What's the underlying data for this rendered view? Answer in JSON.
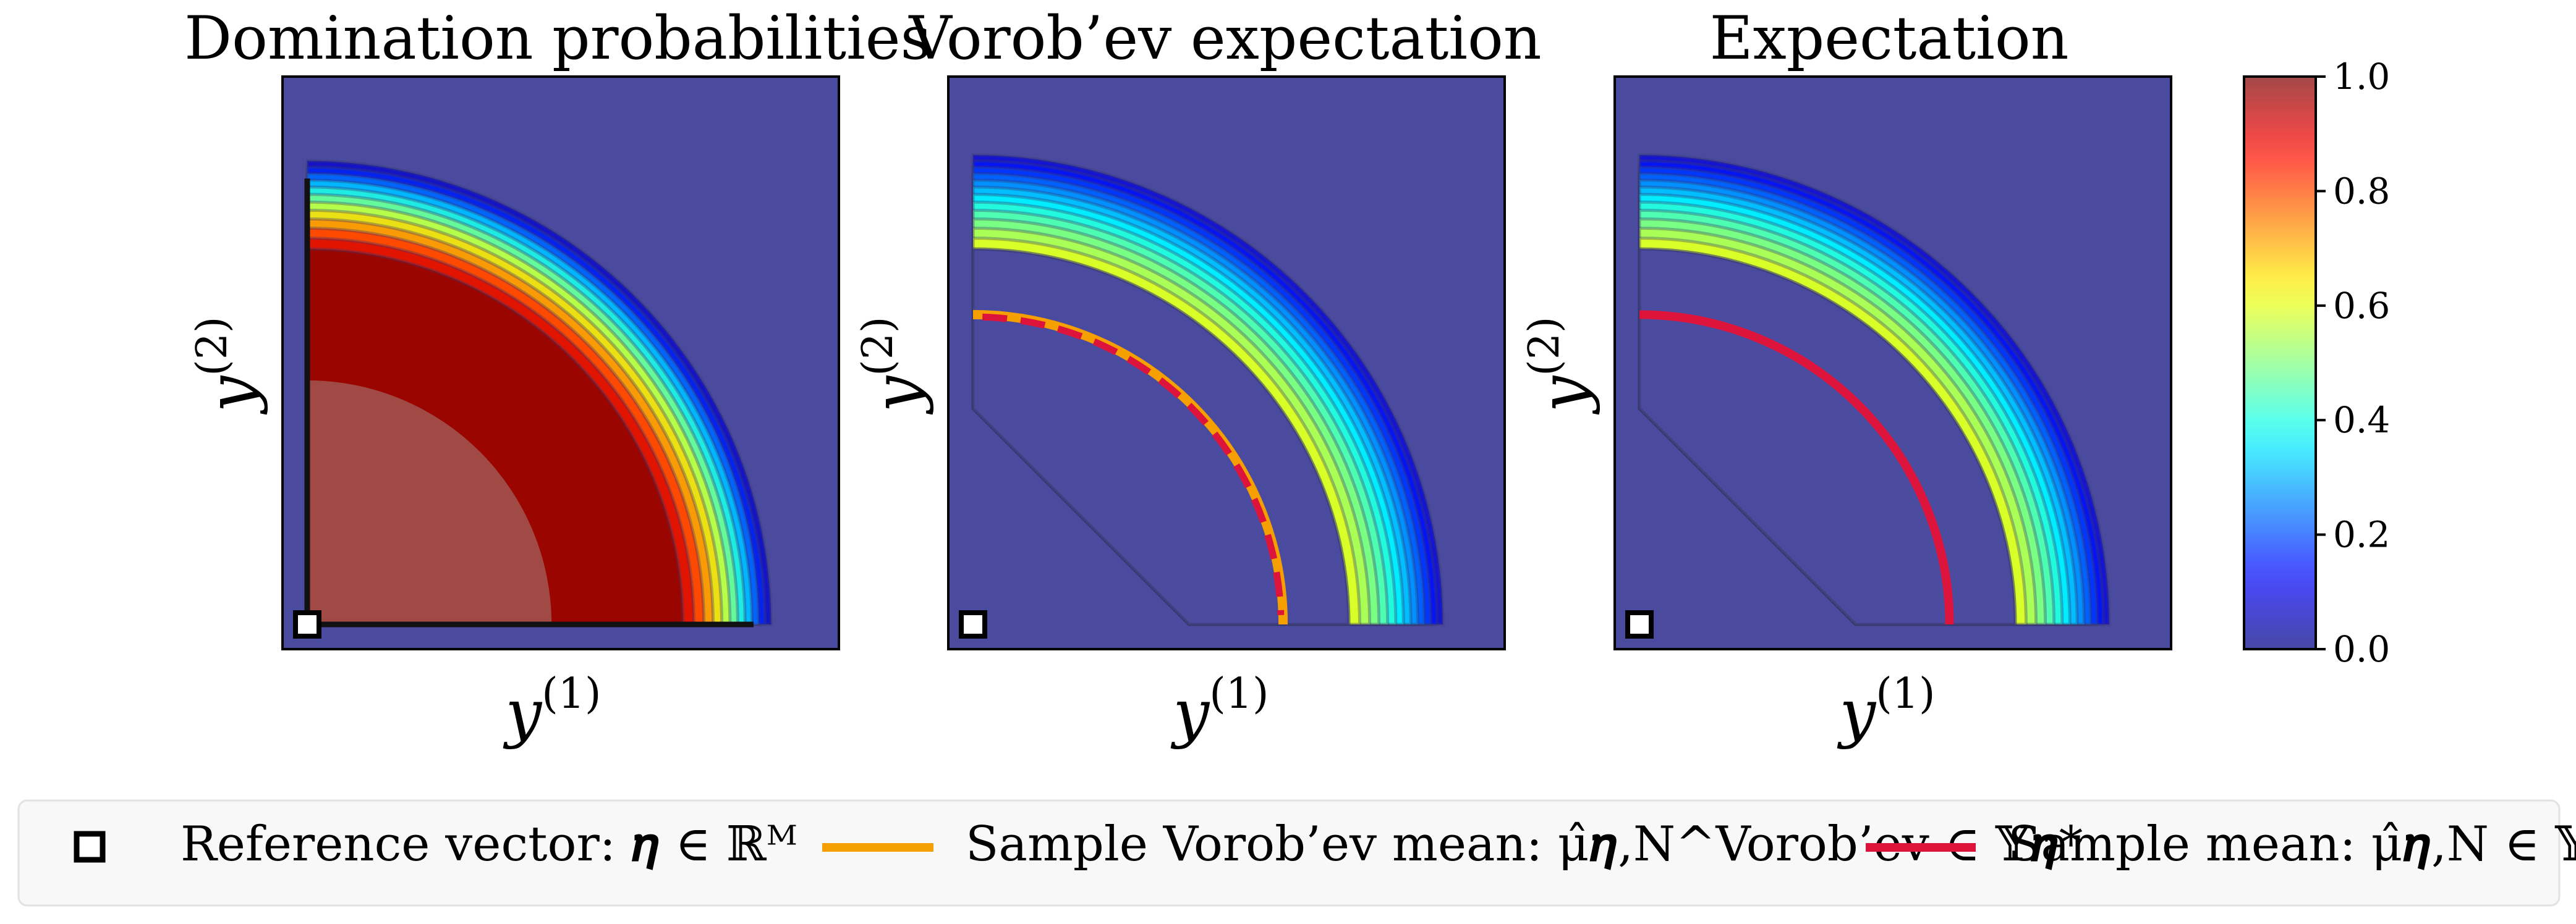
{
  "chart_data": {
    "type": "heatmap",
    "panels": [
      {
        "title": "Domination probabilities",
        "xlabel": "y",
        "xlabel_sup": "(1)",
        "ylabel": "y",
        "ylabel_sup": "(2)",
        "map": "domination",
        "overlay": "none"
      },
      {
        "title": "Vorob’ev expectation",
        "xlabel": "y",
        "xlabel_sup": "(1)",
        "ylabel": "y",
        "ylabel_sup": "(2)",
        "map": "vorobev",
        "overlay": "vorobev_mean"
      },
      {
        "title": "Expectation",
        "xlabel": "y",
        "xlabel_sup": "(1)",
        "ylabel": "y",
        "ylabel_sup": "(2)",
        "map": "expectation",
        "overlay": "sample_mean"
      }
    ],
    "colorbar": {
      "min": 0.0,
      "max": 1.0,
      "ticks": [
        "0.0",
        "0.2",
        "0.4",
        "0.6",
        "0.8",
        "1.0"
      ],
      "colormap": "jet"
    },
    "legend": [
      {
        "marker": "square",
        "label": "Reference vector: 𝜼 ∈ ℝᴹ",
        "color": "#000000"
      },
      {
        "marker": "line",
        "label": "Sample Vorob’ev mean: μ̂𝜼,N^Vorob’ev ∈ 𝕐𝜼*",
        "color": "#f5a000"
      },
      {
        "marker": "line",
        "label": "Sample mean: μ̂𝜼,N ∈ 𝕐𝜼*",
        "color": "#dc143c"
      }
    ],
    "colors": {
      "background": "#4a4a9e",
      "vorobev": "#f5a000",
      "mean": "#dc143c"
    }
  }
}
